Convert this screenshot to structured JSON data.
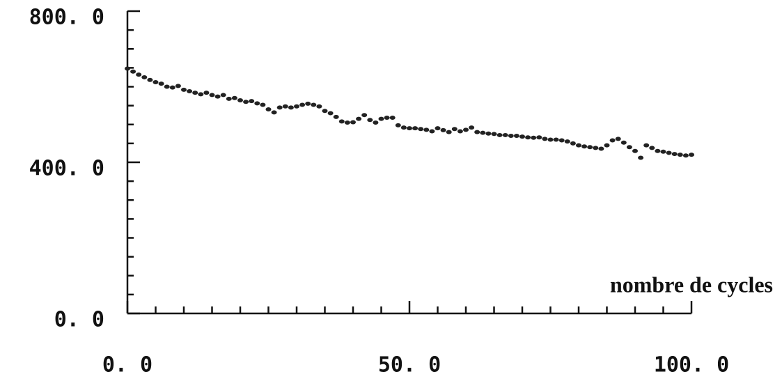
{
  "chart_data": {
    "type": "scatter",
    "x_label": "nombre de cycles",
    "xlim": [
      0,
      100
    ],
    "ylim": [
      0,
      800
    ],
    "xticks": [
      {
        "value": 0,
        "label": "0. 0"
      },
      {
        "value": 50,
        "label": "50. 0"
      },
      {
        "value": 100,
        "label": "100. 0"
      }
    ],
    "yticks": [
      {
        "value": 0,
        "label": "0. 0"
      },
      {
        "value": 400,
        "label": "400. 0"
      },
      {
        "value": 800,
        "label": "800. 0"
      }
    ],
    "x_minor_ticks": [
      5,
      10,
      15,
      20,
      25,
      30,
      35,
      40,
      45,
      55,
      60,
      65,
      70,
      75,
      80,
      85,
      90,
      95
    ],
    "y_minor_ticks": [
      50,
      100,
      150,
      200,
      250,
      300,
      350,
      450,
      500,
      550,
      600,
      650,
      700,
      750
    ],
    "color": "#222222",
    "x": [
      0,
      1,
      2,
      3,
      4,
      5,
      6,
      7,
      8,
      9,
      10,
      11,
      12,
      13,
      14,
      15,
      16,
      17,
      18,
      19,
      20,
      21,
      22,
      23,
      24,
      25,
      26,
      27,
      28,
      29,
      30,
      31,
      32,
      33,
      34,
      35,
      36,
      37,
      38,
      39,
      40,
      41,
      42,
      43,
      44,
      45,
      46,
      47,
      48,
      49,
      50,
      51,
      52,
      53,
      54,
      55,
      56,
      57,
      58,
      59,
      60,
      61,
      62,
      63,
      64,
      65,
      66,
      67,
      68,
      69,
      70,
      71,
      72,
      73,
      74,
      75,
      76,
      77,
      78,
      79,
      80,
      81,
      82,
      83,
      84,
      85,
      86,
      87,
      88,
      89,
      90,
      91,
      92,
      93,
      94,
      95,
      96,
      97,
      98,
      99,
      100
    ],
    "values": [
      648,
      640,
      632,
      625,
      618,
      612,
      608,
      600,
      598,
      602,
      592,
      588,
      584,
      580,
      584,
      578,
      574,
      578,
      568,
      570,
      564,
      560,
      562,
      556,
      552,
      540,
      532,
      545,
      548,
      545,
      548,
      552,
      555,
      552,
      548,
      536,
      530,
      520,
      508,
      505,
      506,
      515,
      525,
      512,
      505,
      515,
      518,
      518,
      498,
      492,
      490,
      490,
      488,
      486,
      482,
      490,
      485,
      480,
      488,
      482,
      486,
      492,
      480,
      478,
      476,
      475,
      472,
      472,
      470,
      470,
      468,
      466,
      465,
      466,
      462,
      460,
      460,
      458,
      455,
      450,
      445,
      442,
      440,
      438,
      436,
      445,
      458,
      462,
      452,
      440,
      430,
      412,
      445,
      438,
      430,
      428,
      425,
      422,
      420,
      418,
      420
    ]
  }
}
